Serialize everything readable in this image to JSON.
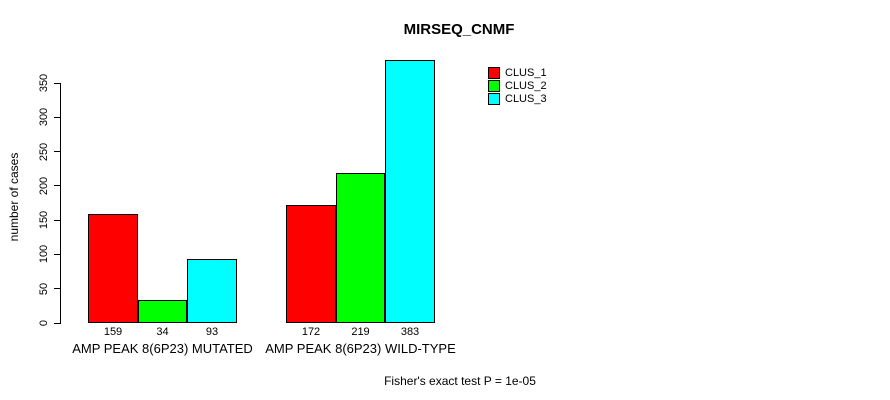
{
  "chart_data": {
    "type": "bar",
    "title": "MIRSEQ_CNMF",
    "ylabel": "number of cases",
    "xlabel": "",
    "categories": [
      "AMP PEAK 8(6P23) MUTATED",
      "AMP PEAK 8(6P23) WILD-TYPE"
    ],
    "series": [
      {
        "name": "CLUS_1",
        "color": "#ff0000",
        "values": [
          159,
          172
        ]
      },
      {
        "name": "CLUS_2",
        "color": "#00ff00",
        "values": [
          34,
          219
        ]
      },
      {
        "name": "CLUS_3",
        "color": "#00ffff",
        "values": [
          93,
          383
        ]
      }
    ],
    "bar_value_labels": [
      [
        159,
        34,
        93
      ],
      [
        172,
        219,
        383
      ]
    ],
    "yticks": [
      0,
      50,
      100,
      150,
      200,
      250,
      300,
      350
    ],
    "ylim": [
      0,
      383
    ],
    "grid": false,
    "legend_position": "top-right",
    "annotation": "Fisher's exact test P = 1e-05"
  }
}
